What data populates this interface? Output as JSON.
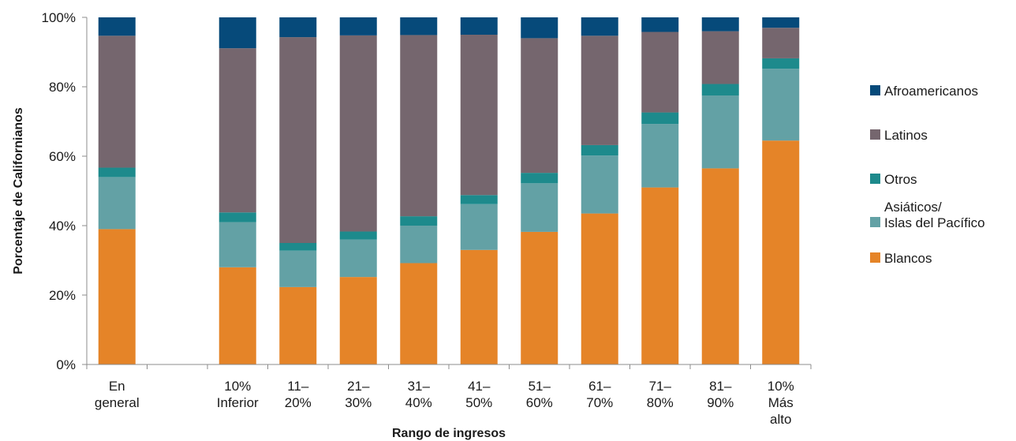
{
  "chart_data": {
    "type": "bar",
    "stacked": true,
    "xlabel": "Rango de ingresos",
    "ylabel": "Porcentaje de Californianos",
    "ylim": [
      0,
      100
    ],
    "yticks": [
      "0%",
      "20%",
      "40%",
      "60%",
      "80%",
      "100%"
    ],
    "categories": [
      [
        "En",
        "general"
      ],
      [],
      [
        "10%",
        "Inferior"
      ],
      [
        "11–",
        "20%"
      ],
      [
        "21–",
        "30%"
      ],
      [
        "31–",
        "40%"
      ],
      [
        "41–",
        "50%"
      ],
      [
        "51–",
        "60%"
      ],
      [
        "61–",
        "70%"
      ],
      [
        "71–",
        "80%"
      ],
      [
        "81–",
        "90%"
      ],
      [
        "10%",
        "Más",
        "alto"
      ]
    ],
    "series": [
      {
        "name": "Blancos",
        "color": "#E58428",
        "values": [
          39,
          null,
          28,
          22.3,
          25.2,
          29.2,
          33,
          38.2,
          43.5,
          51,
          56.5,
          64.5
        ]
      },
      {
        "name": "Asiáticos/ Islas del Pacífico",
        "color": "#63A1A5",
        "values": [
          15,
          null,
          13,
          10.5,
          10.8,
          10.8,
          13.2,
          14,
          16.7,
          18.3,
          21,
          20.7
        ]
      },
      {
        "name": "Otros",
        "color": "#1D8A8C",
        "values": [
          2.7,
          null,
          2.8,
          2.2,
          2.3,
          2.7,
          2.6,
          3,
          3,
          3.3,
          3.3,
          3
        ]
      },
      {
        "name": "Latinos",
        "color": "#75666E",
        "values": [
          38,
          null,
          47.3,
          59.3,
          56.5,
          52.2,
          46.2,
          38.8,
          31.5,
          23.2,
          15.2,
          8.8
        ]
      },
      {
        "name": "Afroamericanos",
        "color": "#064A7A",
        "values": [
          5.3,
          null,
          8.9,
          5.7,
          5.2,
          5.1,
          5,
          6,
          5.3,
          4.2,
          4,
          3
        ]
      }
    ],
    "legend": {
      "position": "right",
      "order": [
        "Afroamericanos",
        "Latinos",
        "Otros",
        "Asiáticos/ Islas del Pacífico",
        "Blancos"
      ],
      "label_lines": {
        "Asiáticos/ Islas del Pacífico": [
          "Asiáticos/",
          "Islas del Pacífico"
        ]
      }
    },
    "grid": false
  }
}
